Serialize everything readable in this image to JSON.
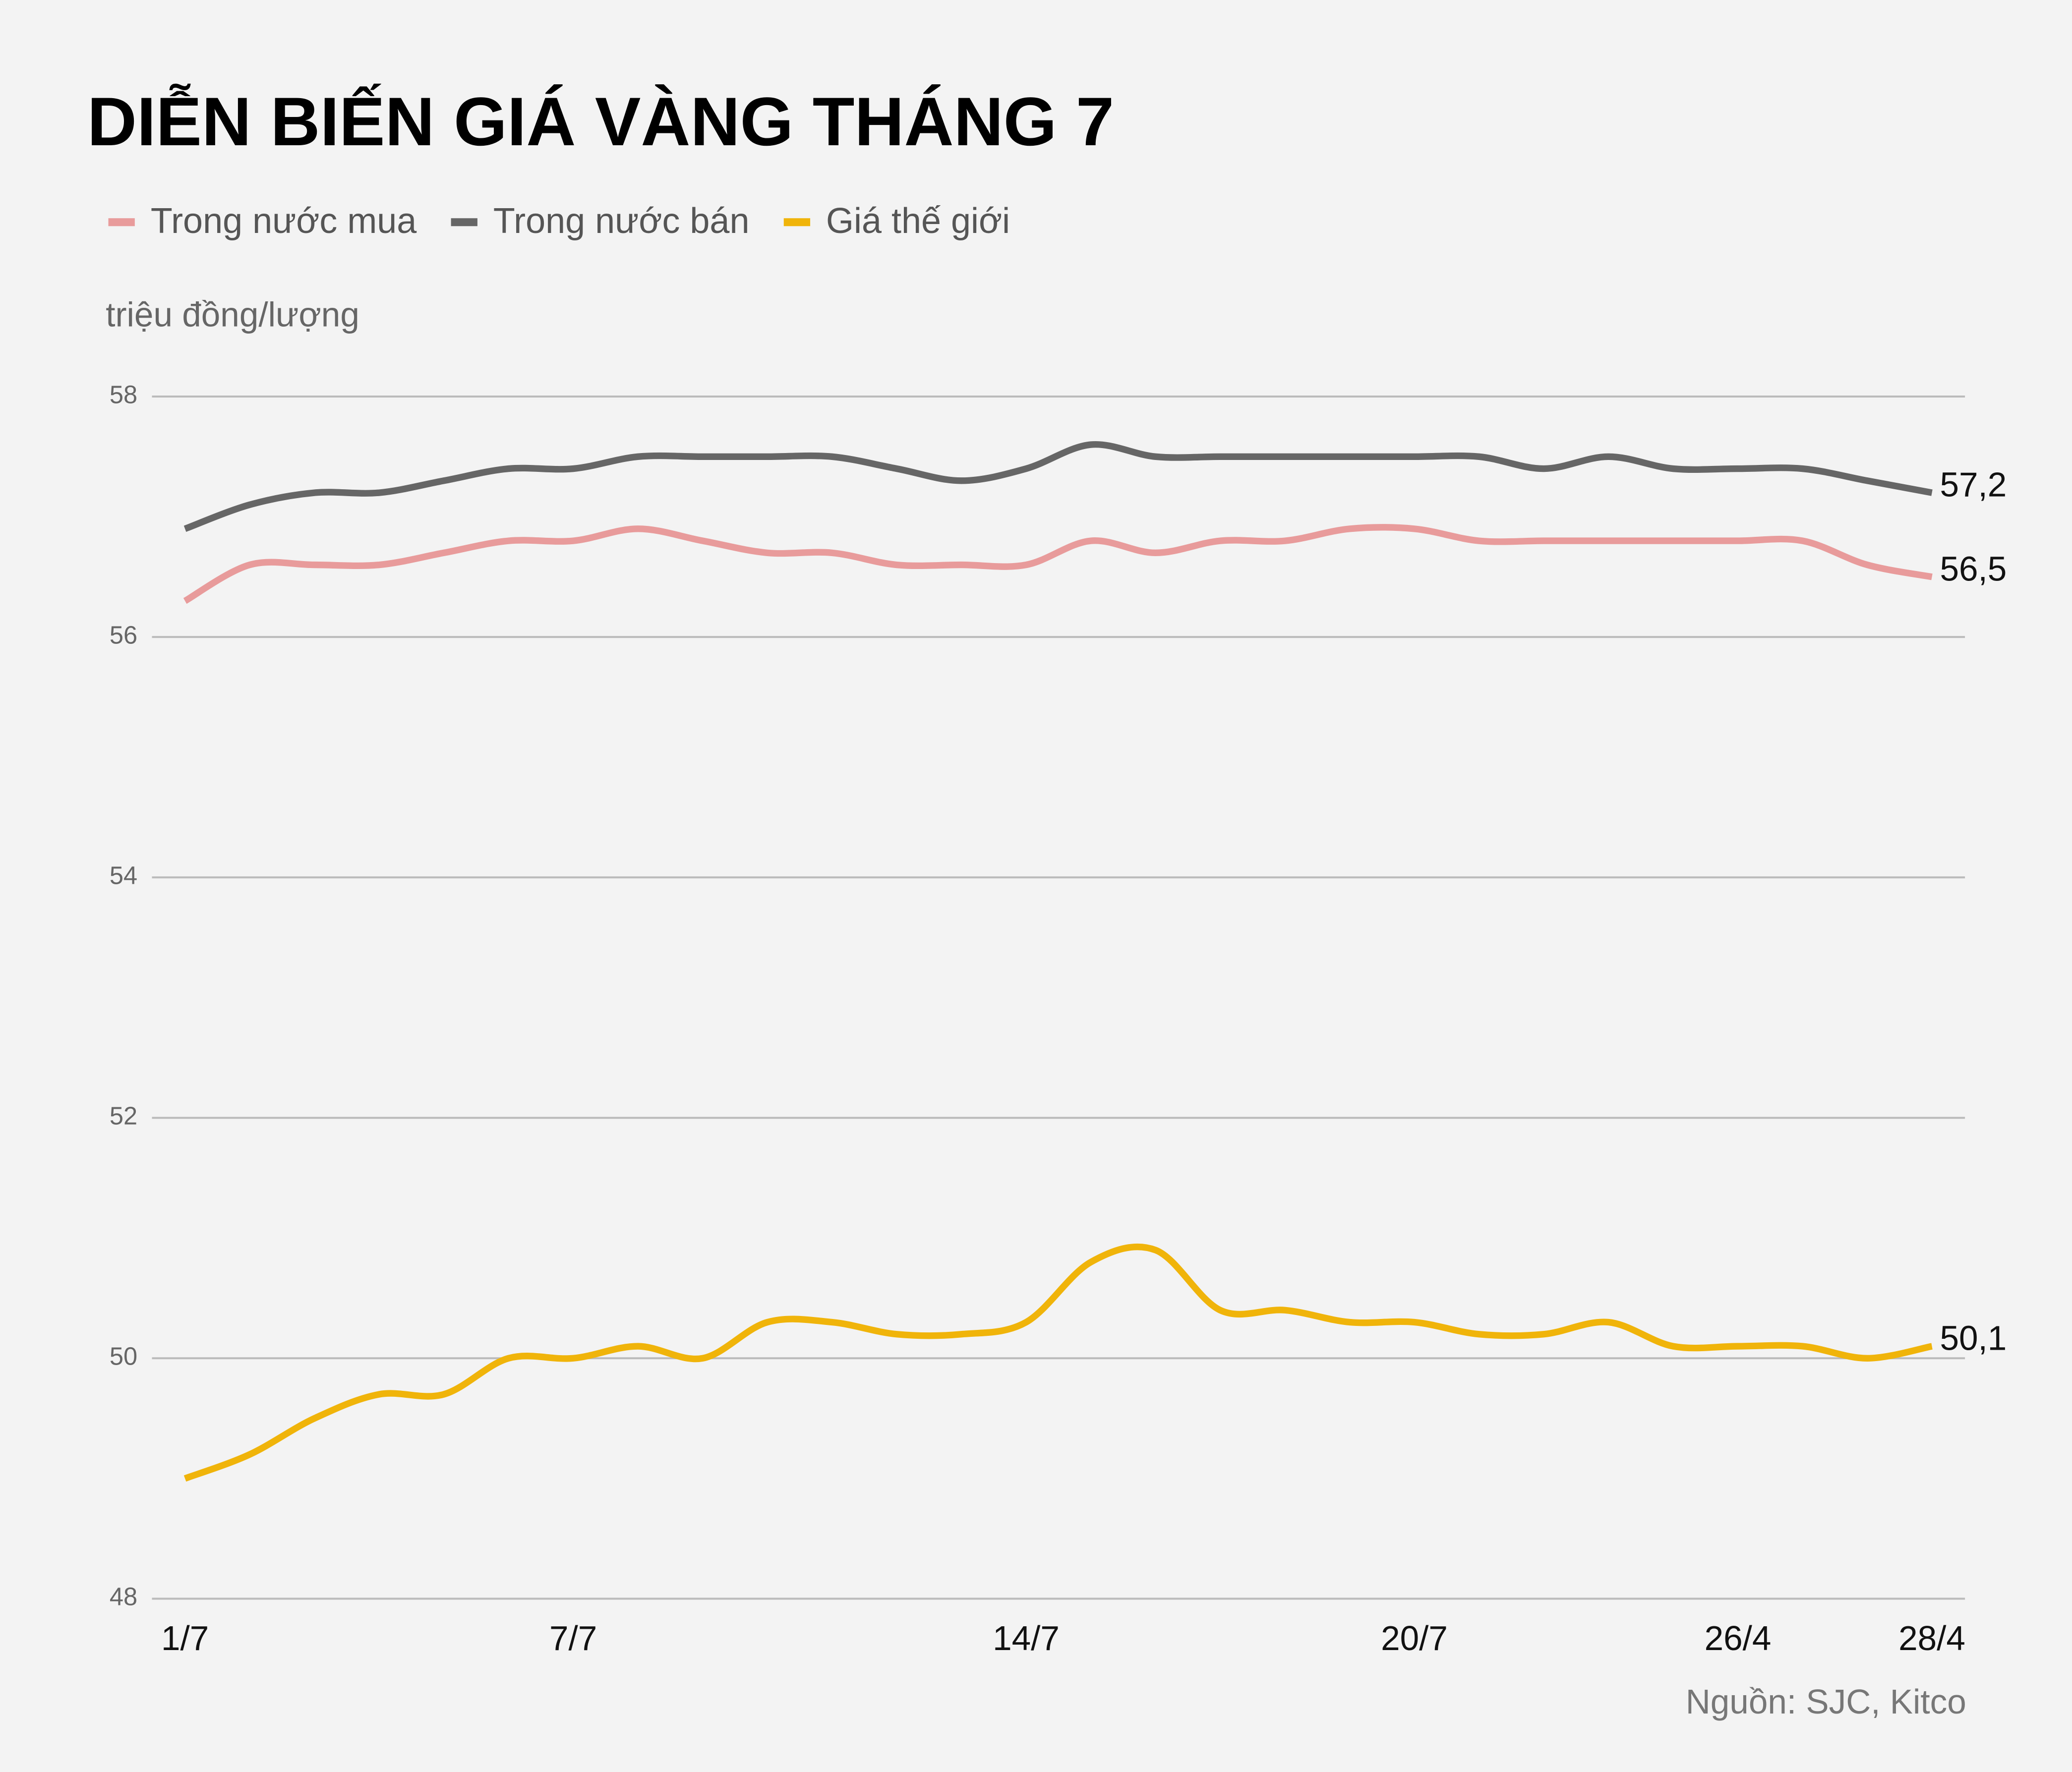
{
  "chart_data": {
    "type": "line",
    "title": "DIỄN BIẾN GIÁ VÀNG THÁNG 7",
    "y_label": "triệu đồng/lượng",
    "source": "Nguồn: SJC, Kitco",
    "categories": [
      "1/7",
      null,
      null,
      null,
      null,
      null,
      "7/7",
      null,
      null,
      null,
      null,
      null,
      null,
      "14/7",
      null,
      null,
      null,
      null,
      null,
      "20/7",
      null,
      null,
      null,
      null,
      "26/4",
      null,
      null,
      "28/4"
    ],
    "series": [
      {
        "name": "Trong nước mua",
        "color": "#e89b9b",
        "values": [
          56.3,
          56.6,
          56.6,
          56.6,
          56.7,
          56.8,
          56.8,
          56.9,
          56.8,
          56.7,
          56.7,
          56.6,
          56.6,
          56.6,
          56.8,
          56.7,
          56.8,
          56.8,
          56.9,
          56.9,
          56.8,
          56.8,
          56.8,
          56.8,
          56.8,
          56.8,
          56.6,
          56.5
        ],
        "value_labels": [
          null,
          null,
          null,
          null,
          null,
          null,
          null,
          null,
          null,
          null,
          null,
          null,
          null,
          null,
          null,
          null,
          null,
          null,
          null,
          null,
          null,
          null,
          null,
          null,
          null,
          null,
          null,
          "56,5"
        ]
      },
      {
        "name": "Trong nước bán",
        "color": "#666666",
        "values": [
          56.9,
          57.1,
          57.2,
          57.2,
          57.3,
          57.4,
          57.4,
          57.5,
          57.5,
          57.5,
          57.5,
          57.4,
          57.3,
          57.4,
          57.6,
          57.5,
          57.5,
          57.5,
          57.5,
          57.5,
          57.5,
          57.4,
          57.5,
          57.4,
          57.4,
          57.4,
          57.3,
          57.2
        ],
        "value_labels": [
          null,
          null,
          null,
          null,
          null,
          null,
          null,
          null,
          null,
          null,
          null,
          null,
          null,
          null,
          null,
          null,
          null,
          null,
          null,
          null,
          null,
          null,
          null,
          null,
          null,
          null,
          null,
          "57,2"
        ]
      },
      {
        "name": "Giá thế giới",
        "color": "#f0b40a",
        "values": [
          49.0,
          49.2,
          49.5,
          49.7,
          49.7,
          50.0,
          50.0,
          50.1,
          50.0,
          50.3,
          50.3,
          50.2,
          50.2,
          50.3,
          50.8,
          50.9,
          50.4,
          50.4,
          50.3,
          50.3,
          50.2,
          50.2,
          50.3,
          50.1,
          50.1,
          50.1,
          50.0,
          50.1
        ],
        "value_labels": [
          null,
          null,
          null,
          null,
          null,
          null,
          null,
          null,
          null,
          null,
          null,
          null,
          null,
          null,
          null,
          null,
          null,
          null,
          null,
          null,
          null,
          null,
          null,
          null,
          null,
          null,
          null,
          "50,1"
        ]
      }
    ],
    "ylim": [
      48,
      58
    ],
    "yticks": [
      48,
      50,
      52,
      54,
      56,
      58
    ],
    "grid": true
  }
}
